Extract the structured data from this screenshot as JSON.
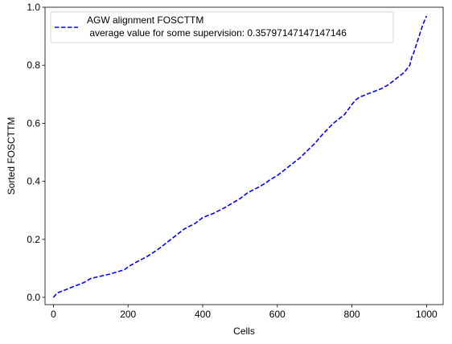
{
  "chart_data": {
    "type": "line",
    "title": "",
    "xlabel": "Cells",
    "ylabel": "Sorted FOSCTTM",
    "xlim": [
      -22.5,
      1044.5
    ],
    "ylim": [
      -0.025,
      1.0
    ],
    "xticks": [
      0,
      200,
      400,
      600,
      800,
      1000
    ],
    "yticks": [
      0.0,
      0.2,
      0.4,
      0.6,
      0.8,
      1.0
    ],
    "xtick_labels": [
      "0",
      "200",
      "400",
      "600",
      "800",
      "1000"
    ],
    "ytick_labels": [
      "0.0",
      "0.2",
      "0.4",
      "0.6",
      "0.8",
      "1.0"
    ],
    "grid": false,
    "legend": {
      "placement": "upper-left",
      "entries": [
        {
          "line1": "AGW alignment FOSCTTM",
          "line2": " average value for some supervision: 0.35797147147147146",
          "color": "#0000ff",
          "style": "dashed"
        }
      ]
    },
    "series": [
      {
        "name": "AGW alignment FOSCTTM\n average value for some supervision: 0.35797147147147146",
        "color": "#0000ff",
        "style": "dashed",
        "x": [
          0,
          10,
          20,
          50,
          80,
          100,
          110,
          150,
          190,
          200,
          220,
          250,
          280,
          300,
          330,
          350,
          380,
          400,
          430,
          460,
          500,
          520,
          550,
          570,
          580,
          600,
          620,
          640,
          660,
          680,
          700,
          720,
          750,
          780,
          800,
          810,
          820,
          840,
          860,
          880,
          900,
          920,
          940,
          955,
          962,
          965,
          970,
          980,
          990,
          1000
        ],
        "y": [
          0.0,
          0.015,
          0.02,
          0.035,
          0.05,
          0.065,
          0.068,
          0.08,
          0.095,
          0.105,
          0.12,
          0.14,
          0.165,
          0.185,
          0.215,
          0.235,
          0.255,
          0.275,
          0.29,
          0.31,
          0.34,
          0.36,
          0.38,
          0.395,
          0.405,
          0.42,
          0.44,
          0.46,
          0.48,
          0.505,
          0.53,
          0.56,
          0.6,
          0.63,
          0.665,
          0.68,
          0.69,
          0.7,
          0.71,
          0.72,
          0.735,
          0.755,
          0.775,
          0.8,
          0.835,
          0.84,
          0.86,
          0.9,
          0.94,
          0.97
        ]
      }
    ]
  }
}
